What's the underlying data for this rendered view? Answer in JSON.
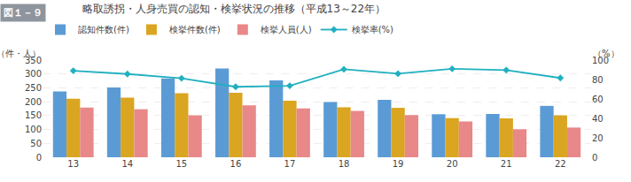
{
  "chart_data": {
    "type": "bar",
    "title": "略取誘拐・人身売買の認知・検挙状況の推移（平成13～22年）",
    "annotations": [
      "図１－９"
    ],
    "ylabel": "（件・人）",
    "y2label": "（%）",
    "categories": [
      "13",
      "14",
      "15",
      "16",
      "17",
      "18",
      "19",
      "20",
      "21",
      "22"
    ],
    "series": [
      {
        "name": "認知件数(件)",
        "color": "#5b9bd5",
        "values": [
          237,
          251,
          284,
          320,
          277,
          199,
          207,
          155,
          156,
          185
        ]
      },
      {
        "name": "検挙件数(件)",
        "color": "#daa520",
        "values": [
          211,
          215,
          231,
          232,
          204,
          180,
          178,
          141,
          140,
          151
        ]
      },
      {
        "name": "検挙人員(人)",
        "color": "#e88888",
        "values": [
          179,
          173,
          151,
          187,
          176,
          167,
          152,
          129,
          101,
          107
        ]
      },
      {
        "name": "検挙率(%)",
        "type": "line",
        "axis": "y2",
        "color": "#20b0c0",
        "marker": "diamond",
        "values": [
          89.0,
          85.7,
          81.3,
          72.5,
          73.6,
          90.5,
          86.0,
          91.0,
          89.7,
          81.6
        ]
      }
    ],
    "ylim": [
      0,
      350
    ],
    "yticks": [
      0,
      50,
      100,
      150,
      200,
      250,
      300,
      350
    ],
    "y2lim": [
      0,
      100
    ],
    "y2ticks": [
      0,
      20,
      40,
      60,
      80,
      100
    ],
    "grid": true,
    "legend": "upper left"
  }
}
